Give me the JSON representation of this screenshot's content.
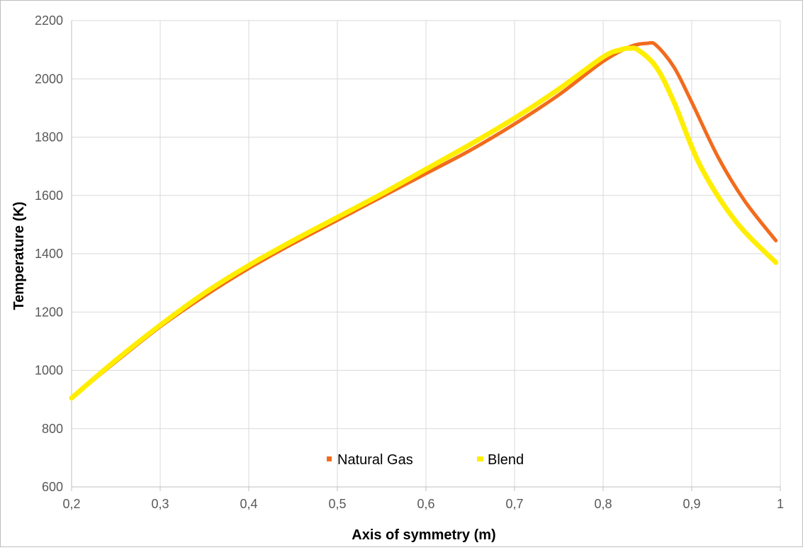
{
  "chart_data": {
    "type": "line",
    "title": "",
    "xlabel": "Axis of symmetry (m)",
    "ylabel": "Temperature (K)",
    "xlim": [
      0.2,
      1.0
    ],
    "ylim": [
      600,
      2200
    ],
    "x_ticks": [
      "0,2",
      "0,3",
      "0,4",
      "0,5",
      "0,6",
      "0,7",
      "0,8",
      "0,9",
      "1"
    ],
    "y_ticks": [
      "600",
      "800",
      "1000",
      "1200",
      "1400",
      "1600",
      "1800",
      "2000",
      "2200"
    ],
    "grid": true,
    "legend": {
      "placement": "bottom-center"
    },
    "series": [
      {
        "name": "Natural Gas",
        "color": "#f26b1d",
        "x": [
          0.2,
          0.25,
          0.3,
          0.35,
          0.4,
          0.45,
          0.5,
          0.55,
          0.6,
          0.65,
          0.7,
          0.75,
          0.8,
          0.83,
          0.85,
          0.86,
          0.88,
          0.9,
          0.93,
          0.96,
          0.995
        ],
        "y": [
          905,
          1030,
          1150,
          1255,
          1350,
          1435,
          1515,
          1595,
          1675,
          1755,
          1845,
          1945,
          2060,
          2110,
          2122,
          2115,
          2040,
          1920,
          1730,
          1580,
          1445
        ]
      },
      {
        "name": "Blend",
        "color": "#ffee00",
        "x": [
          0.2,
          0.25,
          0.3,
          0.35,
          0.4,
          0.45,
          0.5,
          0.55,
          0.6,
          0.65,
          0.7,
          0.75,
          0.8,
          0.82,
          0.83,
          0.84,
          0.86,
          0.88,
          0.91,
          0.95,
          0.995
        ],
        "y": [
          905,
          1035,
          1155,
          1265,
          1360,
          1445,
          1525,
          1605,
          1690,
          1775,
          1865,
          1965,
          2075,
          2100,
          2105,
          2098,
          2040,
          1920,
          1700,
          1510,
          1370
        ]
      }
    ]
  }
}
